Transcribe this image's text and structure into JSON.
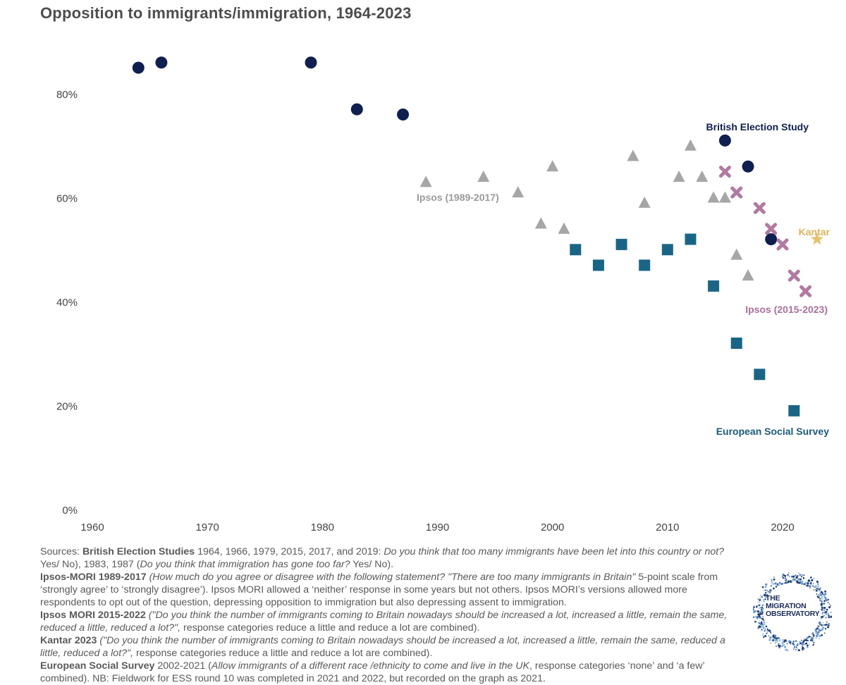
{
  "chart_data": {
    "type": "scatter",
    "title": "Opposition to immigrants/immigration, 1964-2023",
    "xlim": [
      1960,
      2022
    ],
    "ylim": [
      0,
      85
    ],
    "x_ticks": [
      1960,
      1970,
      1980,
      1990,
      2000,
      2010,
      2020
    ],
    "y_ticks": [
      0,
      20,
      40,
      60,
      80
    ],
    "y_tick_labels": [
      "0%",
      "20%",
      "40%",
      "60%",
      "80%"
    ],
    "series": [
      {
        "name": "British Election Study",
        "label": "British Election Study",
        "marker": "circle",
        "color": "#0f1f4f",
        "label_color": "#0f1f4f",
        "x": [
          1964,
          1966,
          1979,
          1983,
          1987,
          2015,
          2017,
          2019
        ],
        "y": [
          85,
          86,
          86,
          77,
          76,
          71,
          66,
          52
        ]
      },
      {
        "name": "Ipsos (1989-2017)",
        "label": "Ipsos (1989-2017)",
        "marker": "triangle",
        "color": "#a6a6a6",
        "label_color": "#9a9a9a",
        "x": [
          1989,
          1994,
          1997,
          1999,
          2000,
          2001,
          2007,
          2008,
          2011,
          2012,
          2013,
          2014,
          2015,
          2016,
          2017
        ],
        "y": [
          63,
          64,
          61,
          55,
          66,
          54,
          68,
          59,
          64,
          70,
          64,
          60,
          60,
          49,
          45
        ]
      },
      {
        "name": "European Social Survey",
        "label": "European Social Survey",
        "marker": "square",
        "color": "#1a6585",
        "label_color": "#1a5a78",
        "x": [
          2002,
          2004,
          2006,
          2008,
          2010,
          2012,
          2014,
          2016,
          2018,
          2021
        ],
        "y": [
          50,
          47,
          51,
          47,
          50,
          52,
          43,
          32,
          26,
          19
        ]
      },
      {
        "name": "Ipsos (2015-2023)",
        "label": "Ipsos (2015-2023)",
        "marker": "cross",
        "color": "#b07aa1",
        "label_color": "#a8709a",
        "x": [
          2015,
          2016,
          2018,
          2019,
          2020,
          2021,
          2022
        ],
        "y": [
          65,
          61,
          58,
          54,
          51,
          45,
          42
        ]
      },
      {
        "name": "Kantar",
        "label": "Kantar",
        "marker": "star",
        "color": "#e6c26e",
        "label_color": "#d9b45a",
        "x": [
          2023
        ],
        "y": [
          52
        ]
      }
    ]
  },
  "notes": {
    "sources_prefix": "Sources: ",
    "bes_label": "British Election Studies",
    "bes_years": " 1964, 1966, 1979, 2015, 2017, and 2019: ",
    "bes_q1": "Do you think that too many immigrants have been let into this country or not?",
    "bes_q1_resp": "  Yes/ No), 1983, 1987 (",
    "bes_q2": "Do you think that immigration has gone too far?",
    "bes_q2_resp": "  Yes/ No).",
    "ipsos1_label": "Ipsos-MORI 1989-2017",
    "ipsos1_q": " (How much do you agree or disagree with the following statement? \"There are too many immigrants in Britain\"",
    "ipsos1_rest": " 5-point scale from ‘strongly agree’ to ‘strongly disagree’). Ipsos MORI allowed a ‘neither’ response in some years but not others. Ipsos MORI’s versions allowed more respondents to opt out of the question, depressing opposition to immigration but also depressing assent to immigration.",
    "ipsos2_label": "Ipsos MORI 2015-2022",
    "ipsos2_q": " (\"Do you think the number of immigrants coming to Britain nowadays should be increased a lot, increased a little, remain the same, reduced a little, reduced a lot?\",",
    "ipsos2_rest": " response categories reduce a little and reduce a lot are combined).",
    "kantar_label": "Kantar 2023",
    "kantar_q": " (\"Do you think the number of immigrants coming to Britain nowadays should be increased a lot, increased a little, remain the same, reduced a little, reduced a lot?\",",
    "kantar_rest": " response categories reduce a little and reduce a lot are combined).",
    "ess_label": "European Social Survey",
    "ess_years": " 2002-2021 (",
    "ess_q": "Allow immigrants of a different race /ethnicity to come and live in the UK",
    "ess_rest": ", response categories ‘none’ and ‘a few’ combined). NB: Fieldwork for ESS round 10 was completed in 2021 and 2022, but recorded on the graph as 2021."
  },
  "logo": {
    "line1": "THE",
    "line2": "MIGRATION",
    "line3": "OBSERVATORY"
  }
}
